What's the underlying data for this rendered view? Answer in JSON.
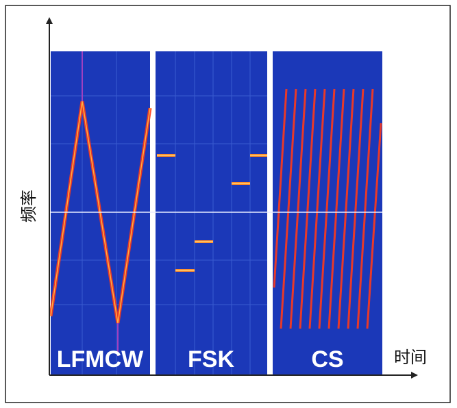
{
  "axes": {
    "y_label": "频率",
    "x_label": "时间"
  },
  "panels": [
    {
      "label": "LFMCW"
    },
    {
      "label": "FSK"
    },
    {
      "label": "CS"
    }
  ]
}
